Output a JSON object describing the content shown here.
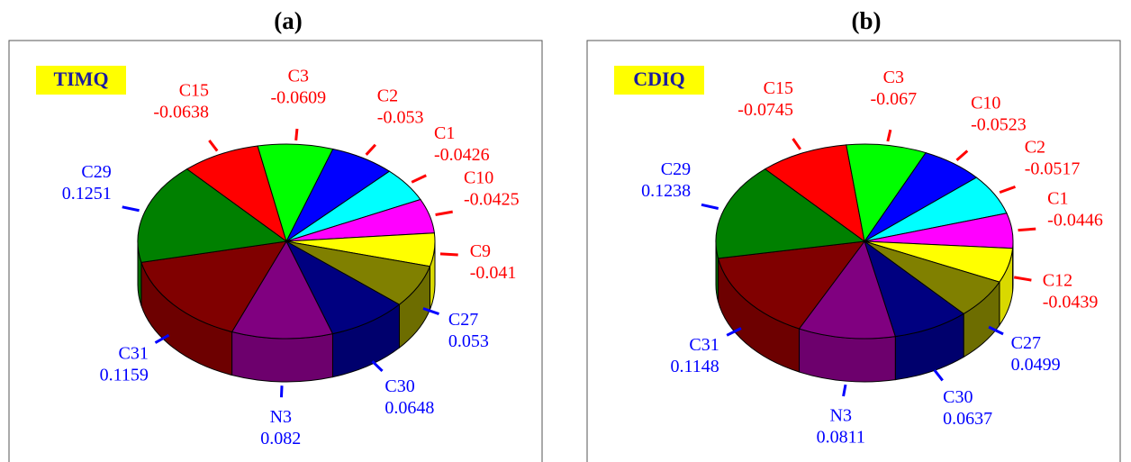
{
  "chart_data": [
    {
      "type": "pie",
      "title": "(a)",
      "annotation": "TIMQ",
      "categories": [
        "C15",
        "C3",
        "C2",
        "C1",
        "C10",
        "C9",
        "C27",
        "C30",
        "N3",
        "C31",
        "C29"
      ],
      "values": [
        -0.0638,
        -0.0609,
        -0.053,
        -0.0426,
        -0.0425,
        -0.041,
        0.053,
        0.0648,
        0.082,
        0.1159,
        0.1251
      ],
      "colors": [
        "#ff0000",
        "#00ff00",
        "#0000ff",
        "#00ffff",
        "#ff00ff",
        "#ffff00",
        "#808000",
        "#000080",
        "#800080",
        "#800000",
        "#008000"
      ]
    },
    {
      "type": "pie",
      "title": "(b)",
      "annotation": "CDIQ",
      "categories": [
        "C15",
        "C3",
        "C10",
        "C2",
        "C1",
        "C12",
        "C27",
        "C30",
        "N3",
        "C31",
        "C29"
      ],
      "values": [
        -0.0745,
        -0.067,
        -0.0523,
        -0.0517,
        -0.0446,
        -0.0439,
        0.0499,
        0.0637,
        0.0811,
        0.1148,
        0.1238
      ],
      "colors": [
        "#ff0000",
        "#00ff00",
        "#0000ff",
        "#00ffff",
        "#ff00ff",
        "#ffff00",
        "#808000",
        "#000080",
        "#800080",
        "#800000",
        "#008000"
      ]
    }
  ]
}
